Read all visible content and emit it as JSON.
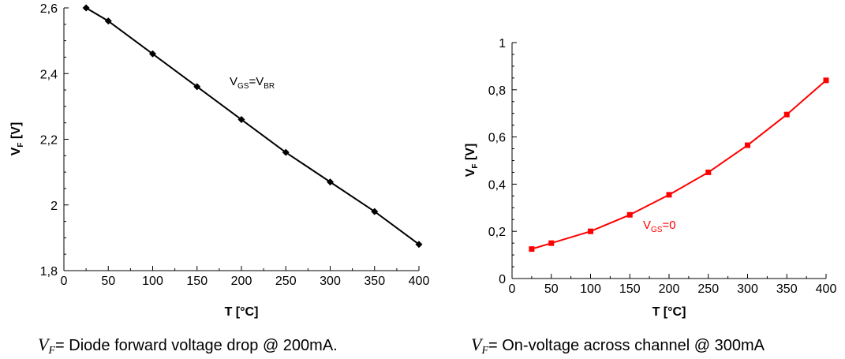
{
  "chart_data": [
    {
      "type": "line",
      "xlabel": "T [°C]",
      "ylabel_main": "V",
      "ylabel_sub": "F",
      "ylabel_rest": " [V]",
      "xlim": [
        0,
        400
      ],
      "ylim": [
        1.8,
        2.6
      ],
      "xticks": [
        "0",
        "50",
        "100",
        "150",
        "200",
        "250",
        "300",
        "350",
        "400"
      ],
      "yticks": [
        "1,8",
        "2",
        "2,2",
        "2,4",
        "2,6"
      ],
      "series": [
        {
          "color": "#000000",
          "marker": "diamond",
          "x": [
            25,
            50,
            100,
            150,
            200,
            250,
            300,
            350,
            400
          ],
          "y": [
            2.6,
            2.56,
            2.46,
            2.36,
            2.26,
            2.16,
            2.07,
            1.98,
            1.88
          ]
        }
      ],
      "annotation": {
        "main": "V",
        "sub1": "GS",
        "eq": "=V",
        "sub2": "BR"
      },
      "caption": {
        "var": "V",
        "sub": "F",
        "text": "= Diode forward voltage drop @ 200mA."
      }
    },
    {
      "type": "line",
      "xlabel": "T [°C]",
      "ylabel_main": "V",
      "ylabel_sub": "F",
      "ylabel_rest": " [V]",
      "xlim": [
        0,
        400
      ],
      "ylim": [
        0,
        1
      ],
      "xticks": [
        "0",
        "50",
        "100",
        "150",
        "200",
        "250",
        "300",
        "350",
        "400"
      ],
      "yticks": [
        "0",
        "0,2",
        "0,4",
        "0,6",
        "0,8",
        "1"
      ],
      "series": [
        {
          "color": "#ff0000",
          "marker": "square",
          "x": [
            25,
            50,
            100,
            150,
            200,
            250,
            300,
            350,
            400
          ],
          "y": [
            0.125,
            0.15,
            0.2,
            0.27,
            0.355,
            0.45,
            0.565,
            0.695,
            0.84
          ]
        }
      ],
      "annotation": {
        "main": "V",
        "sub1": "GS",
        "eq": "=0"
      },
      "caption": {
        "var": "V",
        "sub": "F",
        "text": "= On-voltage across channel @ 300mA"
      }
    }
  ]
}
